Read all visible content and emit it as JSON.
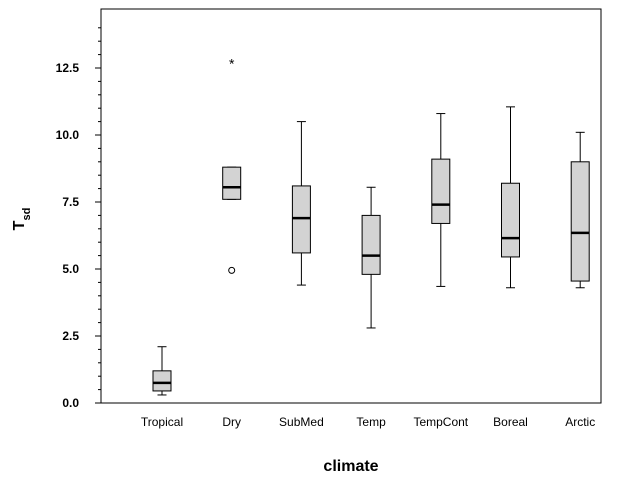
{
  "chart_data": {
    "type": "boxplot",
    "title": "",
    "xlabel": "climate",
    "ylabel": "T",
    "ylabel_subscript": "sd",
    "ylim": [
      0,
      14.5
    ],
    "yticks": [
      "0.0",
      "2.5",
      "5.0",
      "7.5",
      "10.0",
      "12.5"
    ],
    "ytick_values": [
      0,
      2.5,
      5,
      7.5,
      10,
      12.5
    ],
    "yminor_ticks": [
      0.5,
      1,
      1.5,
      2,
      3,
      3.5,
      4,
      4.5,
      5.5,
      6,
      6.5,
      7,
      8,
      8.5,
      9,
      9.5,
      10.5,
      11,
      11.5,
      12,
      13,
      13.5,
      14
    ],
    "grid": false,
    "box_fill": "#d3d3d3",
    "categories": [
      "Tropical",
      "Dry",
      "SubMed",
      "Temp",
      "TempCont",
      "Boreal",
      "Arctic"
    ],
    "boxes": [
      {
        "category": "Tropical",
        "whislo": 0.3,
        "q1": 0.45,
        "med": 0.75,
        "q3": 1.2,
        "whishi": 2.1,
        "outliers": [],
        "extremes": []
      },
      {
        "category": "Dry",
        "whislo": 7.6,
        "q1": 7.6,
        "med": 8.05,
        "q3": 8.8,
        "whishi": 8.8,
        "outliers": [
          4.95
        ],
        "extremes": [
          12.7
        ]
      },
      {
        "category": "SubMed",
        "whislo": 4.4,
        "q1": 5.6,
        "med": 6.9,
        "q3": 8.1,
        "whishi": 10.5,
        "outliers": [],
        "extremes": []
      },
      {
        "category": "Temp",
        "whislo": 2.8,
        "q1": 4.8,
        "med": 5.5,
        "q3": 7.0,
        "whishi": 8.05,
        "outliers": [],
        "extremes": []
      },
      {
        "category": "TempCont",
        "whislo": 4.35,
        "q1": 6.7,
        "med": 7.4,
        "q3": 9.1,
        "whishi": 10.8,
        "outliers": [],
        "extremes": []
      },
      {
        "category": "Boreal",
        "whislo": 4.3,
        "q1": 5.45,
        "med": 6.15,
        "q3": 8.2,
        "whishi": 11.05,
        "outliers": [],
        "extremes": []
      },
      {
        "category": "Arctic",
        "whislo": 4.3,
        "q1": 4.55,
        "med": 6.35,
        "q3": 9.0,
        "whishi": 10.1,
        "outliers": [],
        "extremes": []
      }
    ]
  }
}
